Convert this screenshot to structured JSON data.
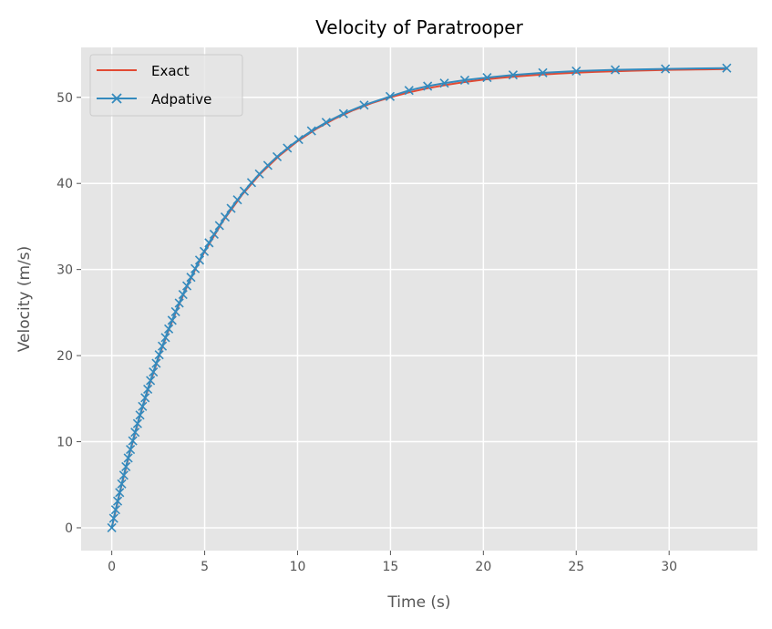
{
  "chart_data": {
    "type": "line",
    "title": "Velocity of Paratrooper",
    "xlabel": "Time (s)",
    "ylabel": "Velocity (m/s)",
    "xlim": [
      -1.65,
      34.75
    ],
    "ylim": [
      -2.65,
      55.8
    ],
    "xticks": [
      0,
      5,
      10,
      15,
      20,
      25,
      30
    ],
    "yticks": [
      0,
      10,
      20,
      30,
      40,
      50
    ],
    "grid": true,
    "legend_position": "top-left",
    "colors": {
      "exact": "#E24A33",
      "adaptive": "#348ABD",
      "background": "#E5E5E5",
      "grid": "#FFFFFF"
    },
    "series": [
      {
        "name": "Exact",
        "marker": "none",
        "x": [
          0,
          0.5,
          1,
          1.5,
          2,
          2.5,
          3,
          3.5,
          4,
          4.5,
          5,
          6,
          7,
          8,
          9,
          10,
          11,
          12,
          13,
          14,
          15,
          16,
          17,
          18,
          19,
          20,
          21,
          22,
          23,
          24,
          25,
          26,
          27,
          28,
          29,
          30,
          31,
          32,
          33.1
        ],
        "y": [
          0,
          4.69,
          8.97,
          12.88,
          16.43,
          19.67,
          22.64,
          25.34,
          27.8,
          30.05,
          32.1,
          35.68,
          38.65,
          41.13,
          43.19,
          44.9,
          46.33,
          47.52,
          48.5,
          49.33,
          50.01,
          50.58,
          51.06,
          51.45,
          51.78,
          52.05,
          52.27,
          52.46,
          52.62,
          52.75,
          52.86,
          52.95,
          53.03,
          53.09,
          53.14,
          53.19,
          53.22,
          53.25,
          53.28
        ]
      },
      {
        "name": "Adpative",
        "marker": "x",
        "x": [
          0,
          0.103,
          0.208,
          0.315,
          0.424,
          0.535,
          0.648,
          0.764,
          0.883,
          1.004,
          1.128,
          1.255,
          1.385,
          1.517,
          1.654,
          1.794,
          1.937,
          2.085,
          2.237,
          2.392,
          2.552,
          2.719,
          2.889,
          3.064,
          3.246,
          3.435,
          3.63,
          3.832,
          4.043,
          4.261,
          4.488,
          4.726,
          4.975,
          5.235,
          5.508,
          5.795,
          6.1,
          6.422,
          6.764,
          7.129,
          7.522,
          7.944,
          8.4,
          8.899,
          9.451,
          10.06,
          10.75,
          11.54,
          12.47,
          13.58,
          14.98,
          16.0,
          17.0,
          17.9,
          19.0,
          20.2,
          21.6,
          23.2,
          25.0,
          27.1,
          29.8,
          33.1
        ],
        "y": [
          0,
          1.1,
          2.1,
          3.1,
          4.1,
          5.1,
          6.1,
          7.1,
          8.1,
          9.1,
          10.1,
          11.1,
          12.1,
          13.1,
          14.1,
          15.1,
          16.1,
          17.1,
          18.1,
          19.1,
          20.1,
          21.1,
          22.1,
          23.1,
          24.1,
          25.1,
          26.1,
          27.1,
          28.1,
          29.1,
          30.1,
          31.1,
          32.1,
          33.1,
          34.1,
          35.1,
          36.1,
          37.1,
          38.1,
          39.1,
          40.1,
          41.1,
          42.1,
          43.1,
          44.1,
          45.1,
          46.1,
          47.1,
          48.1,
          49.1,
          50.1,
          50.8,
          51.3,
          51.65,
          52.0,
          52.3,
          52.6,
          52.85,
          53.05,
          53.2,
          53.3,
          53.4
        ]
      }
    ]
  }
}
